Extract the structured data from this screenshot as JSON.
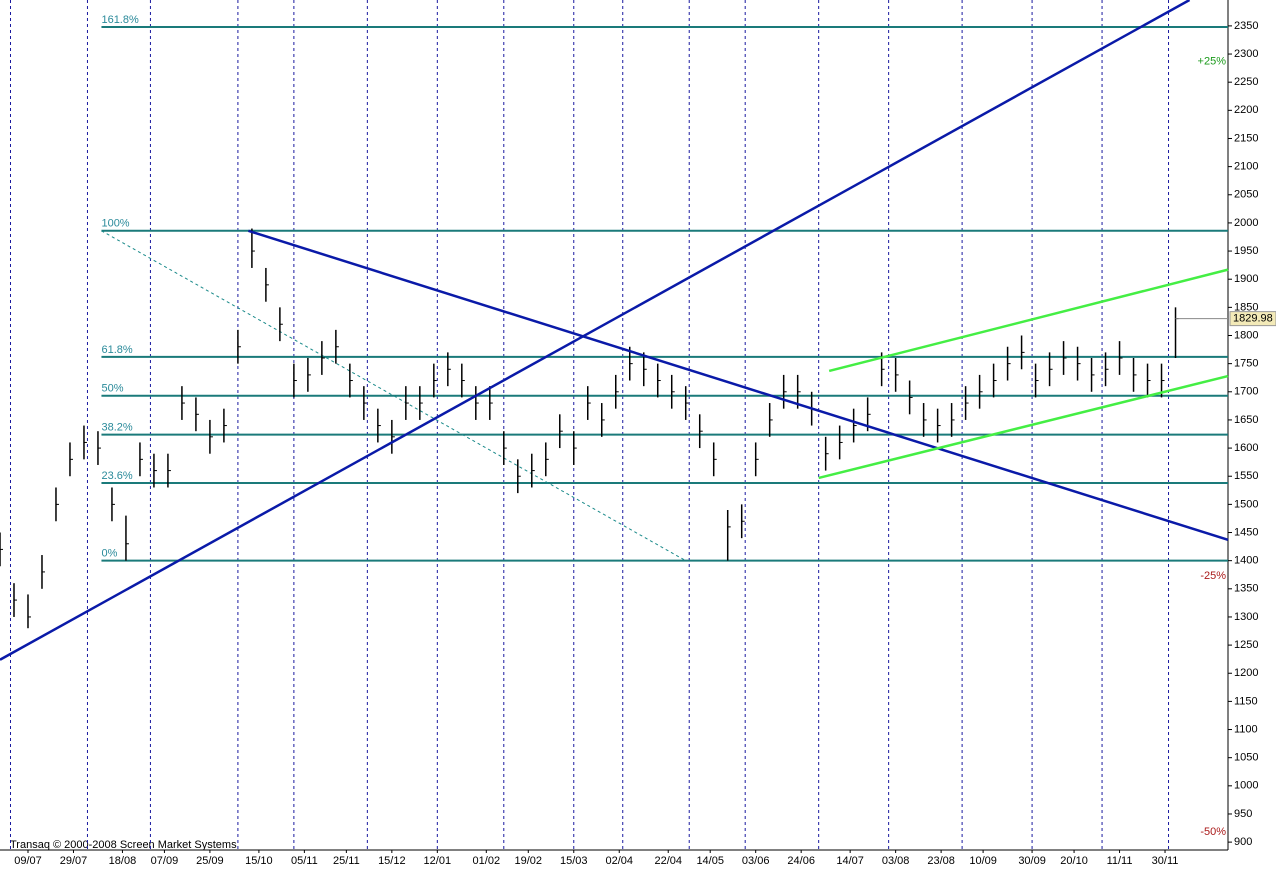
{
  "chart_data": {
    "type": "ohlc",
    "x": [
      0,
      4,
      8,
      12,
      16,
      20,
      24,
      28,
      32,
      36,
      40,
      44,
      48,
      52,
      56,
      60,
      64,
      68,
      72,
      76,
      80,
      84,
      88,
      92,
      96,
      100,
      104,
      108,
      112,
      116,
      120,
      124,
      128,
      132,
      136,
      140,
      144,
      148,
      152,
      156,
      160,
      164,
      168,
      172,
      176,
      180,
      184,
      188,
      192,
      196,
      200,
      204,
      208,
      212,
      216,
      220,
      224,
      228,
      232,
      236,
      240,
      244,
      248,
      252,
      256,
      260,
      264,
      268,
      272,
      276,
      280,
      284,
      288,
      292,
      296,
      300,
      304,
      308,
      312,
      316,
      320,
      324,
      328,
      332,
      336
    ],
    "high": [
      1450,
      1360,
      1340,
      1410,
      1530,
      1610,
      1640,
      1630,
      1530,
      1480,
      1610,
      1590,
      1590,
      1710,
      1690,
      1650,
      1670,
      1810,
      1990,
      1920,
      1850,
      1750,
      1760,
      1790,
      1810,
      1750,
      1710,
      1670,
      1650,
      1710,
      1710,
      1750,
      1770,
      1750,
      1710,
      1710,
      1630,
      1580,
      1590,
      1610,
      1660,
      1630,
      1710,
      1680,
      1730,
      1780,
      1770,
      1750,
      1730,
      1710,
      1660,
      1610,
      1490,
      1500,
      1610,
      1680,
      1730,
      1730,
      1700,
      1620,
      1640,
      1670,
      1690,
      1770,
      1760,
      1720,
      1680,
      1670,
      1680,
      1710,
      1730,
      1750,
      1780,
      1800,
      1750,
      1770,
      1790,
      1780,
      1760,
      1770,
      1790,
      1760,
      1750,
      1750,
      1850
    ],
    "low": [
      1390,
      1300,
      1280,
      1350,
      1470,
      1550,
      1580,
      1570,
      1470,
      1400,
      1550,
      1530,
      1530,
      1650,
      1630,
      1590,
      1610,
      1750,
      1920,
      1860,
      1790,
      1690,
      1700,
      1730,
      1750,
      1690,
      1650,
      1610,
      1590,
      1650,
      1650,
      1690,
      1710,
      1690,
      1650,
      1650,
      1570,
      1520,
      1530,
      1550,
      1600,
      1570,
      1650,
      1620,
      1670,
      1720,
      1710,
      1690,
      1670,
      1650,
      1600,
      1550,
      1400,
      1440,
      1550,
      1620,
      1670,
      1670,
      1640,
      1560,
      1580,
      1610,
      1630,
      1710,
      1700,
      1660,
      1620,
      1610,
      1620,
      1650,
      1670,
      1690,
      1720,
      1740,
      1690,
      1710,
      1730,
      1720,
      1700,
      1710,
      1730,
      1700,
      1690,
      1690,
      1760
    ],
    "close": [
      1420,
      1330,
      1300,
      1380,
      1500,
      1580,
      1610,
      1600,
      1500,
      1430,
      1580,
      1560,
      1560,
      1680,
      1660,
      1620,
      1640,
      1780,
      1950,
      1890,
      1820,
      1720,
      1730,
      1760,
      1780,
      1720,
      1680,
      1640,
      1620,
      1680,
      1680,
      1720,
      1740,
      1720,
      1680,
      1680,
      1600,
      1550,
      1560,
      1580,
      1630,
      1600,
      1680,
      1650,
      1700,
      1750,
      1740,
      1720,
      1700,
      1680,
      1630,
      1580,
      1460,
      1470,
      1580,
      1650,
      1700,
      1700,
      1670,
      1590,
      1610,
      1640,
      1660,
      1740,
      1730,
      1690,
      1650,
      1640,
      1650,
      1680,
      1700,
      1720,
      1750,
      1770,
      1720,
      1740,
      1760,
      1750,
      1730,
      1740,
      1760,
      1730,
      1720,
      1720,
      1830
    ],
    "color": "#000000",
    "xlim": [
      0,
      351
    ],
    "ylim": [
      886,
      2396
    ],
    "yticks": [
      900,
      950,
      1000,
      1050,
      1100,
      1150,
      1200,
      1250,
      1300,
      1350,
      1400,
      1450,
      1500,
      1550,
      1600,
      1650,
      1700,
      1750,
      1800,
      1850,
      1900,
      1950,
      2000,
      2050,
      2100,
      2150,
      2200,
      2250,
      2300,
      2350
    ],
    "xticks": [
      {
        "value": 8,
        "label": "09/07"
      },
      {
        "value": 21,
        "label": "29/07"
      },
      {
        "value": 35,
        "label": "18/08"
      },
      {
        "value": 47,
        "label": "07/09"
      },
      {
        "value": 60,
        "label": "25/09"
      },
      {
        "value": 74,
        "label": "15/10"
      },
      {
        "value": 87,
        "label": "05/11"
      },
      {
        "value": 99,
        "label": "25/11"
      },
      {
        "value": 112,
        "label": "15/12"
      },
      {
        "value": 125,
        "label": "12/01"
      },
      {
        "value": 139,
        "label": "01/02"
      },
      {
        "value": 151,
        "label": "19/02"
      },
      {
        "value": 164,
        "label": "15/03"
      },
      {
        "value": 177,
        "label": "02/04"
      },
      {
        "value": 191,
        "label": "22/04"
      },
      {
        "value": 203,
        "label": "14/05"
      },
      {
        "value": 216,
        "label": "03/06"
      },
      {
        "value": 229,
        "label": "24/06"
      },
      {
        "value": 243,
        "label": "14/07"
      },
      {
        "value": 256,
        "label": "03/08"
      },
      {
        "value": 269,
        "label": "23/08"
      },
      {
        "value": 281,
        "label": "10/09"
      },
      {
        "value": 295,
        "label": "30/09"
      },
      {
        "value": 307,
        "label": "20/10"
      },
      {
        "value": 320,
        "label": "11/11"
      },
      {
        "value": 333,
        "label": "30/11"
      }
    ],
    "xgrid": [
      3,
      25,
      43,
      68,
      84,
      105,
      125,
      144,
      164,
      178,
      197,
      213,
      234,
      254,
      275,
      295,
      315,
      334
    ],
    "fib": {
      "color": "#1a7a7a",
      "x_start": 29,
      "levels": [
        {
          "text": "161.8%",
          "y": 2348
        },
        {
          "text": "100%",
          "y": 1986
        },
        {
          "text": "61.8%",
          "y": 1762
        },
        {
          "text": "50%",
          "y": 1693
        },
        {
          "text": "38.2%",
          "y": 1624
        },
        {
          "text": "23.6%",
          "y": 1538
        },
        {
          "text": "0%",
          "y": 1400
        }
      ]
    },
    "fib_diagonal": {
      "x": [
        29,
        196
      ],
      "y": [
        1986,
        1400
      ],
      "color": "#1a8a8a"
    },
    "trendlines": [
      {
        "color": "#0a1aa8",
        "x": [
          0,
          340
        ],
        "y": [
          1224,
          2396
        ]
      },
      {
        "color": "#0a1aa8",
        "x": [
          71,
          351
        ],
        "y": [
          1986,
          1437
        ]
      },
      {
        "color": "#44ee44",
        "x": [
          237,
          351
        ],
        "y": [
          1737,
          1917
        ]
      },
      {
        "color": "#44ee44",
        "x": [
          234,
          351
        ],
        "y": [
          1547,
          1728
        ]
      }
    ],
    "last_price": 1829.98,
    "markers": [
      {
        "text": "+25%",
        "y": 2287,
        "color": "#1a9a1a"
      },
      {
        "text": "-25%",
        "y": 1373,
        "color": "#aa1a1a"
      },
      {
        "text": "-50%",
        "y": 918,
        "color": "#aa1a1a"
      }
    ],
    "copyright": "Transaq © 2000-2008 Screen Market Systems"
  }
}
